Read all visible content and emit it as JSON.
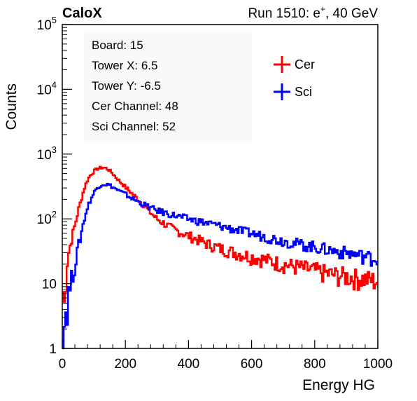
{
  "header": {
    "left": "CaloX",
    "right_prefix": "Run 1510: e",
    "right_sup": "+",
    "right_suffix": ", 40 GeV"
  },
  "info_box": [
    "Board: 15",
    "Tower X: 6.5",
    "Tower Y: -6.5",
    "Cer Channel: 48",
    "Sci Channel: 52"
  ],
  "chart_data": {
    "type": "line",
    "xlabel": "Energy HG",
    "ylabel": "Counts",
    "xlim": [
      0,
      1000
    ],
    "ylim": [
      1,
      100000
    ],
    "yscale": "log",
    "grid": false,
    "legend_position": "top-right",
    "x_ticks": [
      0,
      200,
      400,
      600,
      800,
      1000
    ],
    "y_ticks": [
      {
        "base": "1",
        "exp": ""
      },
      {
        "base": "10",
        "exp": ""
      },
      {
        "base": "10",
        "exp": "2"
      },
      {
        "base": "10",
        "exp": "3"
      },
      {
        "base": "10",
        "exp": "4"
      },
      {
        "base": "10",
        "exp": "5"
      }
    ],
    "series": [
      {
        "name": "Cer",
        "color": "#ff0000",
        "x": [
          0,
          4,
          8,
          12,
          16,
          20,
          30,
          40,
          50,
          60,
          70,
          80,
          90,
          100,
          110,
          120,
          130,
          140,
          150,
          160,
          170,
          180,
          190,
          200,
          220,
          240,
          260,
          280,
          300,
          350,
          400,
          450,
          500,
          550,
          600,
          650,
          700,
          750,
          800,
          850,
          900,
          950,
          1000
        ],
        "y": [
          25,
          3,
          6,
          12,
          22,
          30,
          50,
          80,
          130,
          200,
          300,
          400,
          480,
          540,
          590,
          610,
          620,
          600,
          560,
          500,
          440,
          390,
          350,
          310,
          250,
          200,
          160,
          125,
          100,
          70,
          55,
          43,
          35,
          30,
          26,
          23,
          20,
          18,
          16,
          14,
          13,
          12,
          11
        ]
      },
      {
        "name": "Sci",
        "color": "#0000ff",
        "x": [
          0,
          4,
          8,
          12,
          16,
          20,
          30,
          40,
          50,
          60,
          70,
          80,
          90,
          100,
          110,
          120,
          130,
          140,
          150,
          160,
          170,
          180,
          190,
          200,
          220,
          240,
          260,
          280,
          300,
          350,
          400,
          450,
          500,
          550,
          600,
          650,
          700,
          750,
          800,
          850,
          900,
          950,
          1000
        ],
        "y": [
          6,
          1.5,
          3,
          4,
          5,
          7,
          12,
          20,
          35,
          60,
          100,
          150,
          200,
          250,
          300,
          330,
          345,
          340,
          330,
          310,
          290,
          270,
          255,
          240,
          210,
          185,
          165,
          148,
          135,
          115,
          100,
          88,
          78,
          68,
          60,
          52,
          46,
          41,
          37,
          33,
          30,
          27,
          24
        ]
      }
    ]
  }
}
